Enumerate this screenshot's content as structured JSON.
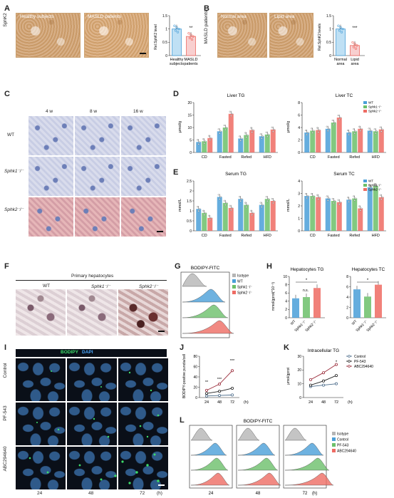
{
  "panels": {
    "A": {
      "letter": "A",
      "img_left": "Healthy subjects",
      "img_right": "MASLD patients",
      "side": "SphK2",
      "ylabel": "Rel.SphK2 level",
      "cats": [
        "Healthy subjects",
        "MASLD patients"
      ],
      "sig": "**"
    },
    "B": {
      "letter": "B",
      "img_left": "Normal area",
      "img_right": "Lipid area",
      "side": "MASLD patients",
      "ylabel": "Rel.SphK2 levels",
      "cats": [
        "Normal area",
        "Lipid area"
      ],
      "sig": "***"
    },
    "C": {
      "letter": "C",
      "cols": [
        "4 w",
        "8 w",
        "16 w"
      ],
      "rows": [
        "WT",
        "Sphk1⁻/⁻",
        "Sphk2⁻/⁻"
      ]
    },
    "D": {
      "letter": "D",
      "title1": "Liver TG",
      "title2": "Liver TC",
      "ylabel": "μmol/g",
      "cats": [
        "CD",
        "Fasted",
        "Refed",
        "HFD"
      ]
    },
    "E": {
      "letter": "E",
      "title1": "Serum TG",
      "title2": "Serum TC",
      "ylabel": "mmol/L",
      "cats": [
        "CD",
        "Fasted",
        "Refed",
        "HFD"
      ]
    },
    "F": {
      "letter": "F",
      "title": "Primary hepatocytes",
      "cols": [
        "WT",
        "Sphk1⁻/⁻",
        "Sphk2⁻/⁻"
      ]
    },
    "G": {
      "letter": "G",
      "title": "BODIPY-FITC",
      "legend": [
        "Isotype",
        "WT",
        "Sphk1⁻/⁻",
        "Sphk2⁻/⁻"
      ]
    },
    "H": {
      "letter": "H",
      "title1": "Hepatocytes TG",
      "title2": "Hepatocytes TC",
      "ylabel": "mmol/gprot(*10⁻³)",
      "cats": [
        "WT",
        "Sphk1⁻/⁻",
        "Sphk2⁻/⁻"
      ],
      "ns": "n.s."
    },
    "I": {
      "letter": "I",
      "legend_a": "BODIPY",
      "legend_b": "DAPI",
      "rows": [
        "Control",
        "PF-543",
        "ABC294640"
      ],
      "cols": [
        "24",
        "48",
        "72"
      ],
      "unit": "(h)"
    },
    "J": {
      "letter": "J",
      "ylabel": "BODIPY-positive puncta/cell"
    },
    "K": {
      "letter": "K",
      "title": "Intracellular TG",
      "ylabel": "μmol/gprot",
      "legend": [
        "Control",
        "PF-543",
        "ABC294640"
      ]
    },
    "L": {
      "letter": "L",
      "title": "BODIPY-FITC",
      "legend": [
        "Isotype",
        "Control",
        "PF-543",
        "ABC294640"
      ],
      "cols": [
        "24",
        "48",
        "72"
      ],
      "unit": "(h)"
    }
  },
  "series_labels": {
    "wt": "WT",
    "k1": "Sphk1⁻/⁻",
    "k2": "Sphk2⁻/⁻"
  },
  "colors": {
    "blue": "#4a9fd8",
    "green": "#6cbf6a",
    "red": "#ee6b63",
    "gray": "#b5b5b5"
  },
  "chart_data": [
    {
      "type": "bar",
      "panel": "A",
      "categories": [
        "Healthy subjects",
        "MASLD patients"
      ],
      "values": [
        1.0,
        0.72
      ],
      "ylabel": "Rel.SphK2 level",
      "ylim": [
        0,
        1.5
      ]
    },
    {
      "type": "bar",
      "panel": "B",
      "categories": [
        "Normal area",
        "Lipid area"
      ],
      "values": [
        1.0,
        0.38
      ],
      "ylabel": "Rel.SphK2 levels",
      "ylim": [
        0,
        1.5
      ]
    },
    {
      "type": "bar",
      "panel": "D-Liver TG",
      "title": "Liver TG",
      "ylabel": "μmol/g",
      "ylim": [
        0,
        20
      ],
      "categories": [
        "CD",
        "Fasted",
        "Refed",
        "HFD"
      ],
      "series": [
        {
          "name": "WT",
          "values": [
            4.2,
            8.5,
            5.6,
            6.5
          ]
        },
        {
          "name": "Sphk1⁻/⁻",
          "values": [
            4.5,
            10.0,
            7.0,
            7.2
          ]
        },
        {
          "name": "Sphk2⁻/⁻",
          "values": [
            5.8,
            15.5,
            9.0,
            9.2
          ]
        }
      ]
    },
    {
      "type": "bar",
      "panel": "D-Liver TC",
      "title": "Liver TC",
      "ylabel": "μmol/g",
      "ylim": [
        0,
        8
      ],
      "categories": [
        "CD",
        "Fasted",
        "Refed",
        "HFD"
      ],
      "series": [
        {
          "name": "WT",
          "values": [
            3.2,
            3.8,
            3.2,
            3.5
          ]
        },
        {
          "name": "Sphk1⁻/⁻",
          "values": [
            3.5,
            4.8,
            3.4,
            3.4
          ]
        },
        {
          "name": "Sphk2⁻/⁻",
          "values": [
            3.6,
            5.6,
            3.8,
            3.7
          ]
        }
      ]
    },
    {
      "type": "bar",
      "panel": "E-Serum TG",
      "title": "Serum TG",
      "ylabel": "mmol/L",
      "ylim": [
        0,
        2.5
      ],
      "categories": [
        "CD",
        "Fasted",
        "Refed",
        "HFD"
      ],
      "series": [
        {
          "name": "WT",
          "values": [
            1.1,
            1.7,
            1.6,
            1.3
          ]
        },
        {
          "name": "Sphk1⁻/⁻",
          "values": [
            0.9,
            1.4,
            1.3,
            1.6
          ]
        },
        {
          "name": "Sphk2⁻/⁻",
          "values": [
            0.65,
            1.15,
            0.9,
            1.5
          ]
        }
      ]
    },
    {
      "type": "bar",
      "panel": "E-Serum TC",
      "title": "Serum TC",
      "ylabel": "mmol/L",
      "ylim": [
        0,
        4
      ],
      "categories": [
        "CD",
        "Fasted",
        "Refed",
        "HFD"
      ],
      "series": [
        {
          "name": "WT",
          "values": [
            2.8,
            2.6,
            2.5,
            3.5
          ]
        },
        {
          "name": "Sphk1⁻/⁻",
          "values": [
            2.8,
            2.4,
            2.6,
            3.6
          ]
        },
        {
          "name": "Sphk2⁻/⁻",
          "values": [
            2.7,
            2.3,
            1.8,
            2.7
          ]
        }
      ]
    },
    {
      "type": "bar",
      "panel": "H-Hepatocytes TG",
      "title": "Hepatocytes TG",
      "ylabel": "mmol/gprot(*10⁻³)",
      "ylim": [
        0,
        10
      ],
      "categories": [
        "WT",
        "Sphk1⁻/⁻",
        "Sphk2⁻/⁻"
      ],
      "values": [
        4.7,
        5.0,
        7.2
      ]
    },
    {
      "type": "bar",
      "panel": "H-Hepatocytes TC",
      "title": "Hepatocytes TC",
      "ylabel": "mmol/gprot(*10⁻³)",
      "ylim": [
        0,
        8
      ],
      "categories": [
        "WT",
        "Sphk1⁻/⁻",
        "Sphk2⁻/⁻"
      ],
      "values": [
        5.5,
        4.1,
        6.4
      ]
    },
    {
      "type": "line",
      "panel": "J",
      "ylabel": "BODIPY-positive puncta/cell",
      "ylim": [
        0,
        80
      ],
      "x": [
        24,
        48,
        72
      ],
      "xlabel": "(h)",
      "series": [
        {
          "name": "Control",
          "values": [
            3,
            4,
            5
          ]
        },
        {
          "name": "PF-543",
          "values": [
            8,
            12,
            18
          ]
        },
        {
          "name": "ABC294640",
          "values": [
            14,
            26,
            52
          ]
        }
      ]
    },
    {
      "type": "line",
      "panel": "K",
      "title": "Intracellular TG",
      "ylabel": "μmol/gprot",
      "ylim": [
        0,
        30
      ],
      "x": [
        24,
        48,
        72
      ],
      "xlabel": "(h)",
      "series": [
        {
          "name": "Control",
          "values": [
            8,
            9,
            10
          ]
        },
        {
          "name": "PF-543",
          "values": [
            9,
            12,
            16
          ]
        },
        {
          "name": "ABC294640",
          "values": [
            13,
            18,
            24
          ]
        }
      ]
    }
  ]
}
